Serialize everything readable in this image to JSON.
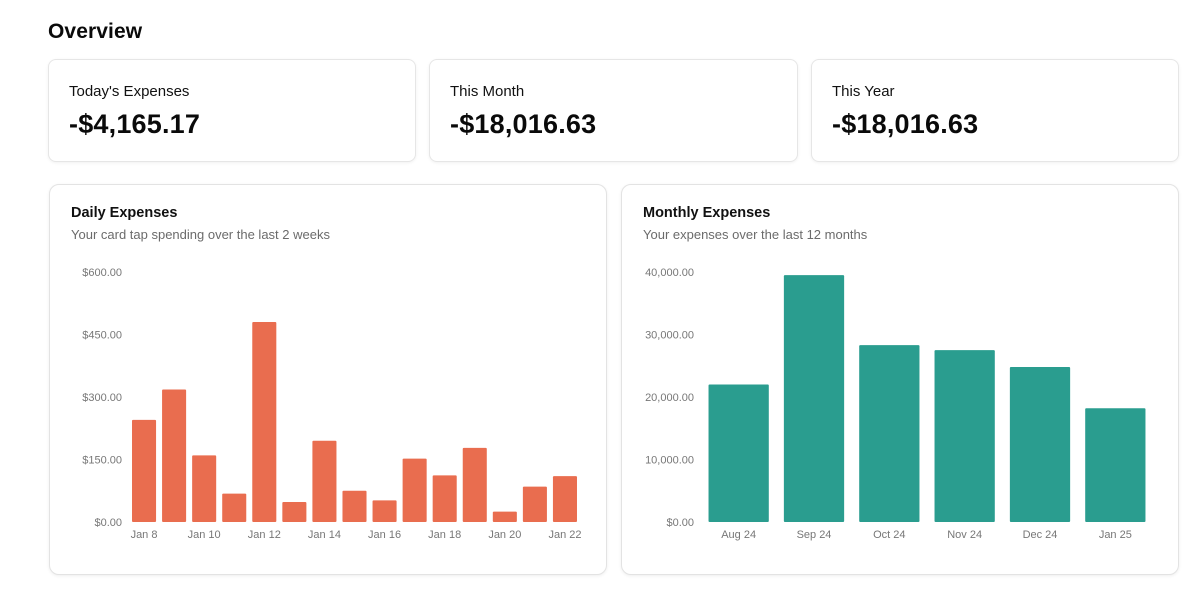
{
  "page": {
    "title": "Overview"
  },
  "stats": [
    {
      "label": "Today's Expenses",
      "value": "-$4,165.17"
    },
    {
      "label": "This Month",
      "value": "-$18,016.63"
    },
    {
      "label": "This Year",
      "value": "-$18,016.63"
    }
  ],
  "colors": {
    "daily_bar": "#e96d4f",
    "monthly_bar": "#2a9d8f"
  },
  "chart_data": [
    {
      "type": "bar",
      "title": "Daily Expenses",
      "subtitle": "Your card tap spending over the last 2 weeks",
      "categories": [
        "Jan 8",
        "Jan 9",
        "Jan 10",
        "Jan 11",
        "Jan 12",
        "Jan 13",
        "Jan 14",
        "Jan 15",
        "Jan 16",
        "Jan 17",
        "Jan 18",
        "Jan 19",
        "Jan 20",
        "Jan 21",
        "Jan 22"
      ],
      "x_tick_labels": [
        "Jan 8",
        "",
        "Jan 10",
        "",
        "Jan 12",
        "",
        "Jan 14",
        "",
        "Jan 16",
        "",
        "Jan 18",
        "",
        "Jan 20",
        "",
        "Jan 22"
      ],
      "values": [
        245,
        318,
        160,
        68,
        480,
        48,
        195,
        75,
        52,
        152,
        112,
        178,
        25,
        85,
        110
      ],
      "y_ticks": [
        0,
        150,
        300,
        450,
        600
      ],
      "y_tick_labels": [
        "$0.00",
        "$150.00",
        "$300.00",
        "$450.00",
        "$600.00"
      ],
      "ylim": [
        0,
        600
      ],
      "grid": false,
      "xlabel": "",
      "ylabel": ""
    },
    {
      "type": "bar",
      "title": "Monthly Expenses",
      "subtitle": "Your expenses over the last 12 months",
      "categories": [
        "Aug 24",
        "Sep 24",
        "Oct 24",
        "Nov 24",
        "Dec 24",
        "Jan 25"
      ],
      "x_tick_labels": [
        "Aug 24",
        "Sep 24",
        "Oct 24",
        "Nov 24",
        "Dec 24",
        "Jan 25"
      ],
      "values": [
        22000,
        39500,
        28300,
        27500,
        24800,
        18200
      ],
      "y_ticks": [
        0,
        10000,
        20000,
        30000,
        40000
      ],
      "y_tick_labels": [
        "$0.00",
        "10,000.00",
        "20,000.00",
        "30,000.00",
        "40,000.00"
      ],
      "ylim": [
        0,
        40000
      ],
      "grid": false,
      "xlabel": "",
      "ylabel": ""
    }
  ]
}
